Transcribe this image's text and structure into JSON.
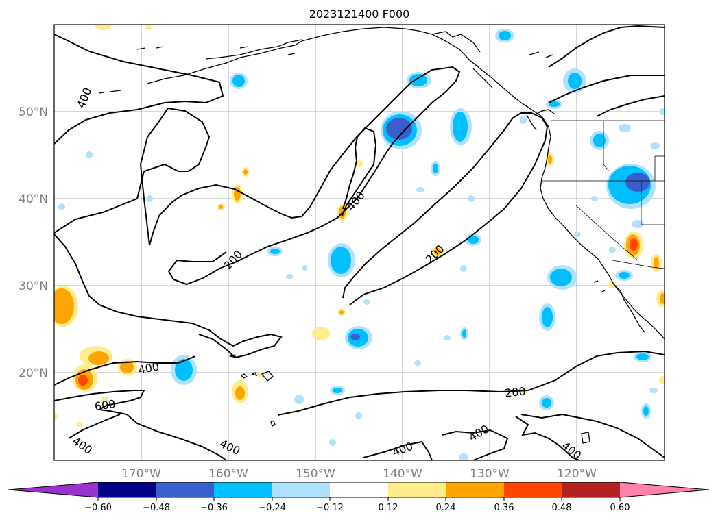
{
  "title": "2023121400 F000",
  "lat_labels": [
    "50°N",
    "40°N",
    "30°N",
    "20°N"
  ],
  "lon_labels": [
    "170°W",
    "160°W",
    "150°W",
    "140°W",
    "130°W",
    "120°W"
  ],
  "contour_labels": [
    "400",
    "400",
    "200",
    "200",
    "400",
    "600",
    "400",
    "400",
    "200",
    "400",
    "400",
    "400"
  ],
  "colorbar": {
    "ticks": [
      "−0.60",
      "−0.48",
      "−0.36",
      "−0.24",
      "−0.12",
      "0.12",
      "0.24",
      "0.36",
      "0.48",
      "0.60"
    ],
    "colors": [
      "#9a32cd",
      "#00008b",
      "#3a5fcd",
      "#00bfff",
      "#b0e2ff",
      "#ffffff",
      "#ffec8b",
      "#ffa500",
      "#ff4500",
      "#b22222",
      "#ff82ab"
    ]
  }
}
